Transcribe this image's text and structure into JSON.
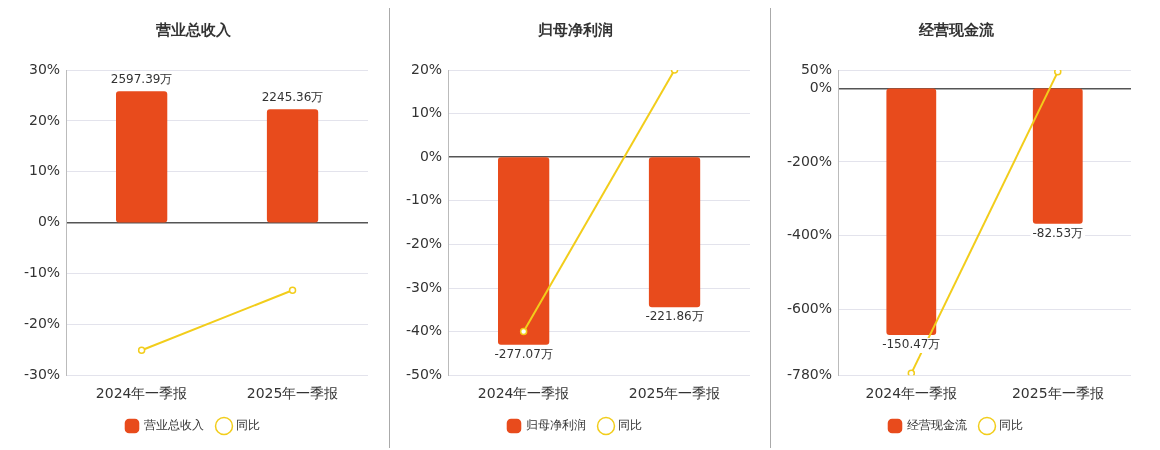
{
  "chart_data": [
    {
      "type": "bar",
      "title": "营业总收入",
      "categories": [
        "2024年一季报",
        "2025年一季报"
      ],
      "series": [
        {
          "name": "营业总收入",
          "axis": "y2",
          "color": "#e84b1c",
          "values": [
            2597.39,
            2245.36
          ],
          "value_labels": [
            "2597.39万",
            "2245.36万"
          ]
        },
        {
          "name": "同比",
          "type": "line",
          "color": "#f2cd1b",
          "values": [
            -25.1,
            -13.3
          ]
        }
      ],
      "ylim": [
        -30,
        30
      ],
      "yticks": [
        {
          "value": -30,
          "label": "-30%"
        },
        {
          "value": -20,
          "label": "-20%"
        },
        {
          "value": -10,
          "label": "-10%"
        },
        {
          "value": 0,
          "label": "0%"
        },
        {
          "value": 10,
          "label": "10%"
        },
        {
          "value": 20,
          "label": "20%"
        },
        {
          "value": 30,
          "label": "30%"
        }
      ],
      "grid": "y",
      "legend": "bottom",
      "marker": "circle"
    },
    {
      "type": "bar",
      "title": "归母净利润",
      "categories": [
        "2024年一季报",
        "2025年一季报"
      ],
      "series": [
        {
          "name": "归母净利润",
          "axis": "y2",
          "color": "#e84b1c",
          "values": [
            -277.07,
            -221.86
          ],
          "value_labels": [
            "-277.07万",
            "-221.86万"
          ]
        },
        {
          "name": "同比",
          "type": "line",
          "color": "#f2cd1b",
          "values": [
            -40,
            20
          ]
        }
      ],
      "ylim": [
        -50,
        20
      ],
      "yticks": [
        {
          "value": -50,
          "label": "-50%"
        },
        {
          "value": -40,
          "label": "-40%"
        },
        {
          "value": -30,
          "label": "-30%"
        },
        {
          "value": -20,
          "label": "-20%"
        },
        {
          "value": -10,
          "label": "-10%"
        },
        {
          "value": 0,
          "label": "0%"
        },
        {
          "value": 10,
          "label": "10%"
        },
        {
          "value": 20,
          "label": "20%"
        }
      ],
      "grid": "y",
      "legend": "bottom",
      "marker": "circle"
    },
    {
      "type": "bar",
      "title": "经营现金流",
      "categories": [
        "2024年一季报",
        "2025年一季报"
      ],
      "series": [
        {
          "name": "经营现金流",
          "axis": "y2",
          "color": "#e84b1c",
          "values": [
            -150.47,
            -82.53
          ],
          "value_labels": [
            "-150.47万",
            "-82.53万"
          ]
        },
        {
          "name": "同比",
          "type": "line",
          "color": "#f2cd1b",
          "values": [
            -775,
            45
          ]
        }
      ],
      "ylim": [
        -780,
        50
      ],
      "yticks": [
        {
          "value": -780,
          "label": "-780%"
        },
        {
          "value": -600,
          "label": "-600%"
        },
        {
          "value": -400,
          "label": "-400%"
        },
        {
          "value": -200,
          "label": "-200%"
        },
        {
          "value": 0,
          "label": "0%"
        },
        {
          "value": 50,
          "label": "50%"
        }
      ],
      "grid": "y",
      "legend": "bottom",
      "marker": "circle"
    }
  ]
}
